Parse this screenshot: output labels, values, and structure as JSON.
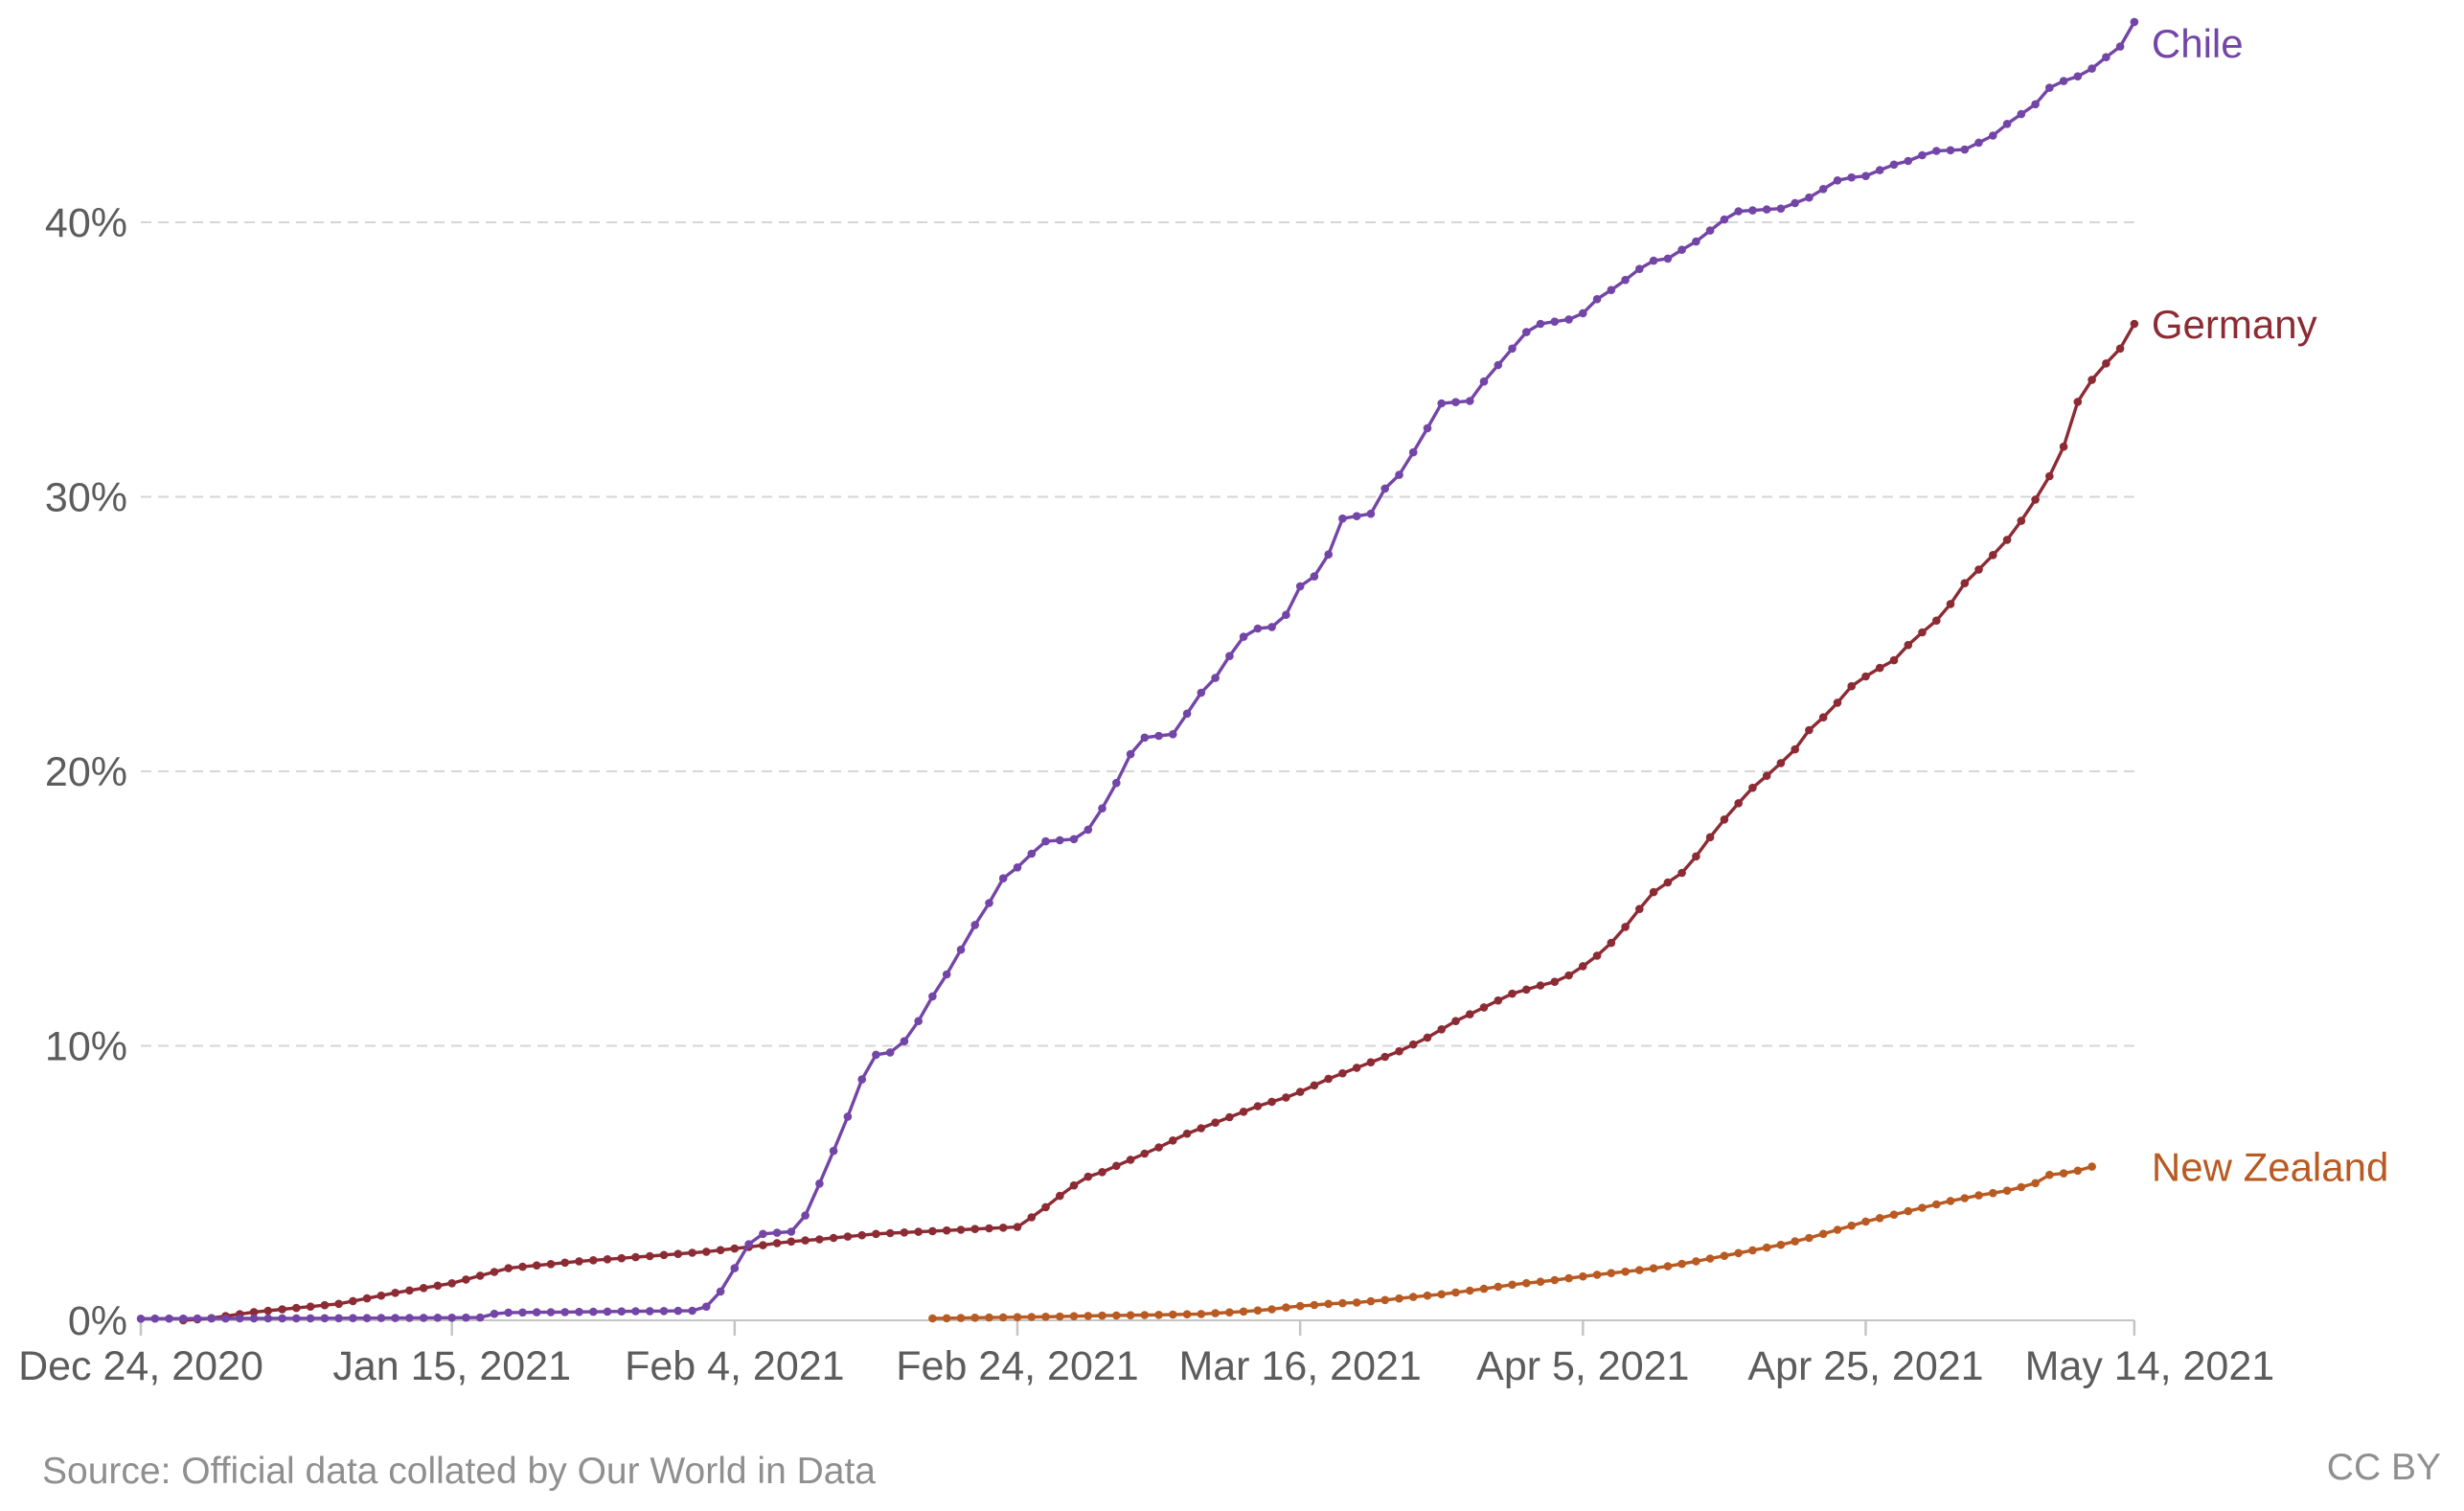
{
  "footer": {
    "source": "Source: Official data collated by Our World in Data",
    "license": "CC BY"
  },
  "chart_data": {
    "type": "line",
    "title": "",
    "grid": "dashed-horizontal",
    "legend_position": "line-end-labels",
    "x_axis": {
      "start_date": "2020-12-24",
      "end_date": "2021-05-14",
      "unit": "days-since-start",
      "ticks": [
        {
          "label": "Dec 24, 2020",
          "day": 0
        },
        {
          "label": "Jan 15, 2021",
          "day": 22
        },
        {
          "label": "Feb 4, 2021",
          "day": 42
        },
        {
          "label": "Feb 24, 2021",
          "day": 62
        },
        {
          "label": "Mar 16, 2021",
          "day": 82
        },
        {
          "label": "Apr 5, 2021",
          "day": 102
        },
        {
          "label": "Apr 25, 2021",
          "day": 122
        },
        {
          "label": "May 14, 2021",
          "day": 141
        }
      ]
    },
    "y_axis": {
      "format": "percent",
      "range": [
        0,
        47.5
      ],
      "ticks": [
        {
          "label": "0%",
          "value": 0
        },
        {
          "label": "10%",
          "value": 10
        },
        {
          "label": "20%",
          "value": 20
        },
        {
          "label": "30%",
          "value": 30
        },
        {
          "label": "40%",
          "value": 40
        }
      ]
    },
    "marker_interval_days": 1,
    "note": "anchor points read from chart (day offset from Dec 24 2020, percent); daily markers linearly interpolated between anchors",
    "series": [
      {
        "name": "Chile",
        "color": "#7345a7",
        "start_day": 0,
        "end_day": 141,
        "final_value": 47.3,
        "anchors": [
          [
            0,
            0.06
          ],
          [
            8,
            0.07
          ],
          [
            16,
            0.08
          ],
          [
            24,
            0.1
          ],
          [
            25.3,
            0.28
          ],
          [
            30,
            0.3
          ],
          [
            35,
            0.33
          ],
          [
            39,
            0.35
          ],
          [
            40,
            0.5
          ],
          [
            40.7,
            0.8
          ],
          [
            41.3,
            1.3
          ],
          [
            42,
            1.9
          ],
          [
            42.7,
            2.55
          ],
          [
            43.3,
            3.0
          ],
          [
            44,
            3.15
          ],
          [
            46.5,
            3.25
          ],
          [
            47.6,
            4.5
          ],
          [
            48.6,
            5.7
          ],
          [
            49.7,
            7.0
          ],
          [
            50.7,
            8.4
          ],
          [
            51.7,
            9.65
          ],
          [
            53.5,
            9.8
          ],
          [
            55,
            10.9
          ],
          [
            56,
            11.8
          ],
          [
            57,
            12.6
          ],
          [
            58,
            13.5
          ],
          [
            59,
            14.4
          ],
          [
            60,
            15.2
          ],
          [
            61,
            16.1
          ],
          [
            62,
            16.5
          ],
          [
            63,
            17.0
          ],
          [
            64,
            17.45
          ],
          [
            66.5,
            17.55
          ],
          [
            67.5,
            18.2
          ],
          [
            68.5,
            19.1
          ],
          [
            69.5,
            20.05
          ],
          [
            70.5,
            21.2
          ],
          [
            73,
            21.35
          ],
          [
            74,
            22.1
          ],
          [
            74.7,
            22.7
          ],
          [
            76,
            23.4
          ],
          [
            77,
            24.2
          ],
          [
            78,
            24.9
          ],
          [
            79,
            25.2
          ],
          [
            80.8,
            25.3
          ],
          [
            81.2,
            26.1
          ],
          [
            82.2,
            26.9
          ],
          [
            83.2,
            27.15
          ],
          [
            84,
            27.9
          ],
          [
            84.9,
            29.2
          ],
          [
            87.2,
            29.4
          ],
          [
            87.8,
            30.2
          ],
          [
            89,
            30.8
          ],
          [
            90.1,
            31.7
          ],
          [
            91,
            32.5
          ],
          [
            91.9,
            33.4
          ],
          [
            94.2,
            33.5
          ],
          [
            95,
            34.2
          ],
          [
            96,
            34.8
          ],
          [
            97,
            35.4
          ],
          [
            98,
            36.0
          ],
          [
            99,
            36.3
          ],
          [
            101.5,
            36.5
          ],
          [
            102.3,
            36.8
          ],
          [
            103,
            37.2
          ],
          [
            104.5,
            37.7
          ],
          [
            105.5,
            38.1
          ],
          [
            106.5,
            38.5
          ],
          [
            107,
            38.6
          ],
          [
            108.3,
            38.7
          ],
          [
            109,
            39.0
          ],
          [
            110,
            39.3
          ],
          [
            111,
            39.7
          ],
          [
            112,
            40.1
          ],
          [
            113,
            40.4
          ],
          [
            116,
            40.5
          ],
          [
            117,
            40.7
          ],
          [
            118,
            40.9
          ],
          [
            118.7,
            41.1
          ],
          [
            119.5,
            41.4
          ],
          [
            120.3,
            41.6
          ],
          [
            122.3,
            41.7
          ],
          [
            123,
            41.9
          ],
          [
            124,
            42.1
          ],
          [
            125.5,
            42.3
          ],
          [
            126.2,
            42.5
          ],
          [
            127,
            42.6
          ],
          [
            129,
            42.65
          ],
          [
            130,
            42.9
          ],
          [
            130.8,
            43.1
          ],
          [
            131.5,
            43.3
          ],
          [
            132.2,
            43.7
          ],
          [
            133.2,
            44.0
          ],
          [
            134,
            44.3
          ],
          [
            134.6,
            44.6
          ],
          [
            135,
            44.9
          ],
          [
            135.5,
            45.1
          ],
          [
            136.6,
            45.2
          ],
          [
            137.3,
            45.4
          ],
          [
            138,
            45.6
          ],
          [
            138.6,
            45.9
          ],
          [
            139.3,
            46.1
          ],
          [
            140,
            46.4
          ],
          [
            140.4,
            46.7
          ],
          [
            140.7,
            47.0
          ],
          [
            141,
            47.3
          ]
        ]
      },
      {
        "name": "Germany",
        "color": "#8c2b33",
        "start_day": 3,
        "end_day": 141,
        "final_value": 36.3,
        "anchors": [
          [
            3,
            0.0
          ],
          [
            5,
            0.08
          ],
          [
            8,
            0.3
          ],
          [
            11,
            0.45
          ],
          [
            14,
            0.6
          ],
          [
            18,
            1.0
          ],
          [
            22,
            1.35
          ],
          [
            26,
            1.9
          ],
          [
            31,
            2.15
          ],
          [
            35,
            2.3
          ],
          [
            40,
            2.5
          ],
          [
            43.5,
            2.7
          ],
          [
            45.5,
            2.85
          ],
          [
            48,
            2.95
          ],
          [
            50,
            3.05
          ],
          [
            52,
            3.15
          ],
          [
            54,
            3.2
          ],
          [
            56,
            3.25
          ],
          [
            58,
            3.3
          ],
          [
            62,
            3.4
          ],
          [
            63.7,
            4.0
          ],
          [
            65.4,
            4.7
          ],
          [
            66.8,
            5.2
          ],
          [
            68,
            5.4
          ],
          [
            70,
            5.85
          ],
          [
            72,
            6.3
          ],
          [
            74,
            6.8
          ],
          [
            77,
            7.4
          ],
          [
            79,
            7.8
          ],
          [
            81.5,
            8.2
          ],
          [
            84,
            8.8
          ],
          [
            86,
            9.2
          ],
          [
            89,
            9.8
          ],
          [
            91,
            10.3
          ],
          [
            93,
            10.9
          ],
          [
            95,
            11.4
          ],
          [
            97,
            11.9
          ],
          [
            99,
            12.2
          ],
          [
            100.5,
            12.4
          ],
          [
            102,
            12.9
          ],
          [
            103.3,
            13.4
          ],
          [
            104.5,
            14.0
          ],
          [
            105.7,
            14.8
          ],
          [
            107,
            15.6
          ],
          [
            109,
            16.3
          ],
          [
            110,
            16.9
          ],
          [
            111,
            17.6
          ],
          [
            112.4,
            18.5
          ],
          [
            114,
            19.4
          ],
          [
            115.6,
            20.1
          ],
          [
            117,
            20.8
          ],
          [
            118,
            21.5
          ],
          [
            119.5,
            22.2
          ],
          [
            121,
            23.1
          ],
          [
            122.4,
            23.6
          ],
          [
            124.2,
            24.1
          ],
          [
            125,
            24.6
          ],
          [
            126.3,
            25.2
          ],
          [
            127.5,
            25.7
          ],
          [
            128.9,
            26.8
          ],
          [
            130.5,
            27.6
          ],
          [
            132.3,
            28.6
          ],
          [
            133.5,
            29.5
          ],
          [
            134.5,
            30.3
          ],
          [
            135.5,
            31.2
          ],
          [
            136.3,
            32.2
          ],
          [
            137.3,
            34.0
          ],
          [
            138.1,
            34.3
          ],
          [
            138.9,
            34.8
          ],
          [
            139.6,
            35.2
          ],
          [
            140.2,
            35.5
          ],
          [
            140.6,
            35.9
          ],
          [
            141,
            36.3
          ]
        ]
      },
      {
        "name": "New Zealand",
        "color": "#b85a22",
        "start_day": 56,
        "end_day": 138,
        "final_value": 5.6,
        "anchors": [
          [
            56,
            0.07
          ],
          [
            60,
            0.1
          ],
          [
            64,
            0.13
          ],
          [
            68,
            0.17
          ],
          [
            72,
            0.2
          ],
          [
            75,
            0.23
          ],
          [
            78,
            0.32
          ],
          [
            80,
            0.4
          ],
          [
            81.5,
            0.5
          ],
          [
            84,
            0.6
          ],
          [
            86,
            0.65
          ],
          [
            88,
            0.74
          ],
          [
            90,
            0.85
          ],
          [
            92,
            0.95
          ],
          [
            95,
            1.15
          ],
          [
            97,
            1.3
          ],
          [
            99.6,
            1.44
          ],
          [
            102,
            1.6
          ],
          [
            104,
            1.72
          ],
          [
            106.4,
            1.85
          ],
          [
            108.4,
            2.0
          ],
          [
            110,
            2.15
          ],
          [
            112,
            2.35
          ],
          [
            114,
            2.55
          ],
          [
            116,
            2.75
          ],
          [
            118,
            3.0
          ],
          [
            120,
            3.3
          ],
          [
            122,
            3.6
          ],
          [
            124,
            3.85
          ],
          [
            126,
            4.1
          ],
          [
            128,
            4.35
          ],
          [
            130,
            4.55
          ],
          [
            132.3,
            4.75
          ],
          [
            134,
            5.0
          ],
          [
            135,
            5.3
          ],
          [
            136.5,
            5.38
          ],
          [
            138,
            5.6
          ]
        ]
      }
    ],
    "colors": {
      "axis_text": "#5c5c5c",
      "gridline": "#d6d6d6",
      "axis_line": "#c4c4c4",
      "footer_text": "#8f8f8f"
    }
  }
}
